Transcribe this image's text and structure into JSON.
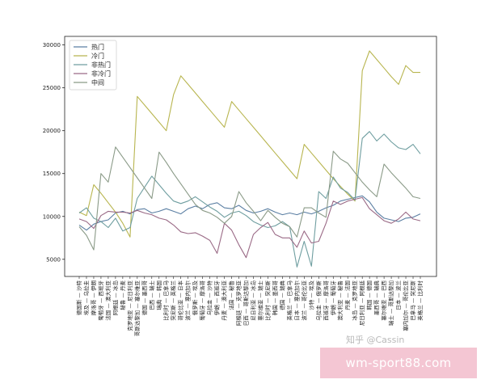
{
  "chart_data": {
    "type": "line",
    "title": "",
    "xlabel": "",
    "ylabel": "",
    "ylim": [
      3000,
      31000
    ],
    "yticks": [
      5000,
      10000,
      15000,
      20000,
      25000,
      30000
    ],
    "grid": false,
    "legend_position": "top-left",
    "categories": [
      "德国斯 — 沙特",
      "埃及 — 乌拉圭",
      "摩洛哥 — 伊朗",
      "葡萄牙 — 西班牙",
      "法国 — 澳大利亚",
      "阿根廷 — 冰岛",
      "秘鲁 — 丹麦",
      "克罗地亚 — 尼日利亚",
      "哥斯达黎加 — 塞尔维亚",
      "德国 — 墨西哥",
      "巴西 — 瑞士",
      "瑞典 — 韩国",
      "比利时 — 巴拿马",
      "突尼斯 — 英格兰",
      "哥伦比亚 — 日本",
      "波兰 — 塞内加尔",
      "俄罗斯 — 埃及",
      "葡萄牙 — 摩洛哥",
      "乌拉圭 — 沙特",
      "伊朗 — 西班牙",
      "丹麦 — 澳大利亚",
      "法国 — 秘鲁",
      "阿根廷 — 克罗地亚",
      "巴西 — 哥斯达黎加",
      "尼日利亚 — 冰岛",
      "塞尔维亚 — 瑞士",
      "比利时 — 突尼斯",
      "韩国 — 墨西哥",
      "德国 — 瑞典",
      "英格兰 — 巴拿马",
      "日本 — 塞内加尔",
      "波兰 — 哥伦比亚",
      "沙特 — 埃及",
      "乌拉圭 — 俄罗斯",
      "西班牙 — 摩洛哥",
      "伊朗 — 葡萄牙",
      "澳大利亚 — 秘鲁",
      "丹麦 — 法国",
      "冰岛 — 克罗地亚",
      "尼日利亚 — 阿根廷",
      "韩国 — 德国",
      "墨西哥 — 瑞典",
      "塞尔维亚 — 巴西",
      "瑞士 — 哥斯达黎加",
      "日本 — 波兰",
      "塞内加尔 — 哥伦比亚",
      "巴拿马 — 突尼斯",
      "英格兰 — 比利时"
    ],
    "series": [
      {
        "name": "热门",
        "color": "#5b7fa3",
        "values": [
          9000,
          8400,
          9100,
          9400,
          9600,
          10400,
          10600,
          10300,
          10800,
          10900,
          10400,
          10600,
          10900,
          10600,
          10300,
          10900,
          11200,
          10900,
          11400,
          11600,
          11000,
          10900,
          11300,
          10700,
          10400,
          10600,
          10900,
          10500,
          10200,
          10400,
          10200,
          10500,
          10300,
          10600,
          11000,
          11300,
          11800,
          12000,
          12200,
          12400,
          11700,
          10500,
          9800,
          9600,
          9400,
          9800,
          9900,
          10300
        ]
      },
      {
        "name": "冷门",
        "color": "#b8b54f",
        "values": [
          10500,
          10100,
          13700,
          12700,
          11600,
          10500,
          9200,
          7600,
          24000,
          23000,
          22000,
          21000,
          20000,
          24200,
          26400,
          25400,
          24400,
          23400,
          22400,
          21400,
          20400,
          23400,
          22400,
          21400,
          20400,
          19400,
          18400,
          17400,
          16400,
          15400,
          14400,
          18400,
          17400,
          16400,
          15400,
          14400,
          13500,
          12600,
          11800,
          27000,
          29300,
          28300,
          27300,
          26300,
          25400,
          27600,
          26800,
          26800
        ]
      },
      {
        "name": "非热门",
        "color": "#6f9ea0",
        "values": [
          10400,
          11000,
          9800,
          9400,
          8700,
          9800,
          8300,
          8700,
          12100,
          13400,
          14700,
          13700,
          12700,
          11800,
          11500,
          11800,
          12300,
          11700,
          11100,
          10600,
          9900,
          10400,
          10600,
          10100,
          9400,
          9000,
          8700,
          8900,
          9400,
          8800,
          4100,
          7100,
          4200,
          12900,
          12100,
          14600,
          13300,
          12800,
          11900,
          19100,
          19900,
          18800,
          19600,
          18700,
          18000,
          17800,
          18400,
          17300
        ]
      },
      {
        "name": "非冷门",
        "color": "#9a6a86",
        "values": [
          9700,
          9400,
          8600,
          10100,
          10600,
          10500,
          10500,
          10400,
          10700,
          10400,
          10200,
          9800,
          9600,
          9000,
          8200,
          8000,
          8100,
          7700,
          7200,
          5700,
          9200,
          8400,
          6700,
          5200,
          7900,
          8700,
          9300,
          7900,
          7500,
          7500,
          6400,
          8300,
          6900,
          7100,
          9200,
          11800,
          11400,
          11800,
          12000,
          12200,
          10900,
          10200,
          9500,
          9200,
          9700,
          10500,
          9700,
          9500
        ]
      },
      {
        "name": "中间",
        "color": "#8a9a87",
        "values": [
          8800,
          7800,
          6100,
          15000,
          14000,
          18100,
          16900,
          15700,
          14500,
          13300,
          12100,
          17500,
          16300,
          15000,
          13800,
          12600,
          11400,
          10700,
          10400,
          9900,
          9200,
          10000,
          12900,
          11600,
          10600,
          9500,
          10700,
          9900,
          9200,
          8800,
          7600,
          11000,
          11000,
          10400,
          9900,
          17600,
          16700,
          16200,
          15100,
          14000,
          13100,
          12300,
          16100,
          15100,
          14200,
          13300,
          12300,
          12100
        ]
      }
    ]
  },
  "watermark_text": "知乎 @Cassin",
  "banner_text": "wm-sport88.com"
}
